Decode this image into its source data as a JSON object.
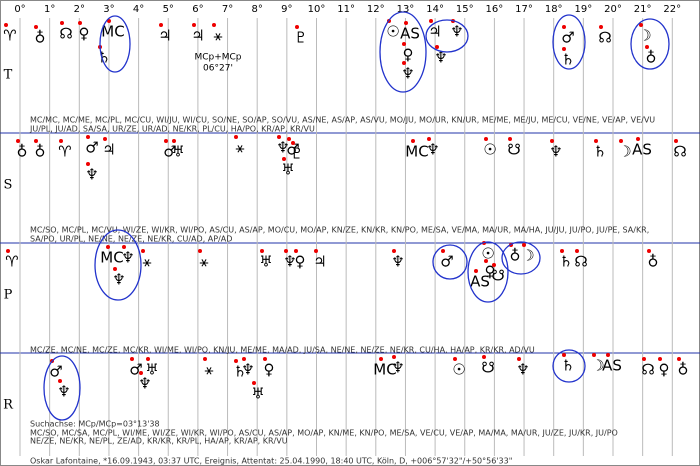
{
  "header": {
    "degrees": [
      "0°",
      "1°",
      "2°",
      "3°",
      "4°",
      "5°",
      "6°",
      "7°",
      "8°",
      "9°",
      "10°",
      "11°",
      "12°",
      "13°",
      "14°",
      "15°",
      "16°",
      "17°",
      "18°",
      "19°",
      "20°",
      "21°",
      "22°"
    ]
  },
  "rows": [
    {
      "label": "T",
      "symbols": [
        "♈",
        "♁",
        "☊",
        "♀",
        "MC",
        "♄",
        "♃",
        "♃",
        "⚹",
        "♇",
        "☉",
        "AS",
        "♀",
        "♆",
        "♃",
        "♆",
        "♆",
        "♂",
        "♄",
        "☊",
        "☽",
        "♁"
      ],
      "note": [
        "MCp+MCp",
        "06°27'"
      ],
      "text": [
        "MC/MC, MC/ME, MC/PL, MC/CU, WI/JU, WI/CU, SO/NE, SO/AP, SO/VU, AS/NE, AS/AP, AS/VU, MO/JU, MO/UR, KN/UR, ME/ME, ME/JU, ME/CU, VE/NE, VE/AP, VE/VU",
        "JU/PL, JU/AD, SA/SA, UR/ZE, UR/AD, NE/KR, PL/CU, HA/PO, KR/AP, KR/VU"
      ]
    },
    {
      "label": "S",
      "symbols": [
        "♁",
        "♁",
        "♈",
        "♂",
        "♃",
        "♆",
        "♂",
        "♅",
        "⚹",
        "♆",
        "♂",
        "♇",
        "♅",
        "MC",
        "♆",
        "☉",
        "☋",
        "♆",
        "♄",
        "☽",
        "AS",
        "☊"
      ],
      "text": [
        "MC/SO, MC/PL, MC/VU, WI/ZE, WI/KR, WI/PO, AS/CU, AS/AP, MO/CU, MO/AP, KN/ZE, KN/KR, KN/PO, ME/SA, VE/MA, MA/UR, MA/HA, JU/JU, JU/PO, JU/PE, SA/KR,",
        "SA/PO, UR/PL, NE/NE, NE/ZE, NE/KR, CU/AD, AP/AD"
      ]
    },
    {
      "label": "P",
      "symbols": [
        "♈",
        "MC",
        "♆",
        "♆",
        "⚹",
        "⚹",
        "♅",
        "♆",
        "♀",
        "♃",
        "♆",
        "♂",
        "☉",
        "♀",
        "AS",
        "☋",
        "♁",
        "☽",
        "♄",
        "☊",
        "♁"
      ],
      "text": [
        "MC/ZE, MC/NE, MC/ZE, MC/KR, WI/ME, WI/PO, KN/JU, ME/ME, MA/AD, JU/SA, NE/NE, NE/ZE, NE/KR, CU/HA, HA/AP, KR/KR, AD/VU"
      ]
    },
    {
      "label": "R",
      "symbols": [
        "♂",
        "♆",
        "♂",
        "♅",
        "♆",
        "⚹",
        "♄",
        "♆",
        "♀",
        "♅",
        "MC",
        "♆",
        "☉",
        "☋",
        "♆",
        "♄",
        "☽",
        "AS",
        "☊",
        "♀",
        "♁"
      ],
      "text": []
    }
  ],
  "footer": {
    "lines": [
      "Suchachse: MCp/MCp=03°13'38",
      "MC/SO, MC/SA, MC/PL, WI/ME, WI/ZE, WI/KR, WI/PO, AS/CU, AS/AP, MO/AP, KN/ME, KN/PO, ME/SA, VE/CU, VE/AP, MA/MA, MA/UR, JU/ZE, JU/KR, JU/PO",
      "NE/ZE, NE/KR, NE/PL, ZE/AD, KR/KR, KR/PL, HA/AP, KR/AP, KR/VU",
      "Oskar Lafontaine, *16.09.1943, 03:37 UTC, Ereignis, Attentat: 25.04.1990, 18:40 UTC, Köln, D, +006°57'32\"/+50°56'33\""
    ]
  }
}
